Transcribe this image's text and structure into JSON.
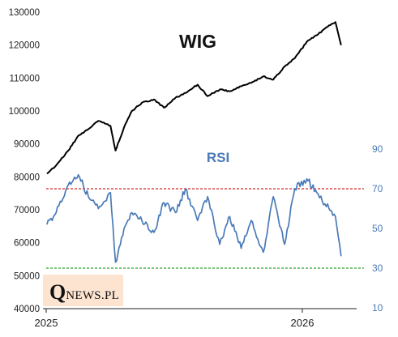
{
  "chart_data": {
    "type": "line",
    "title": "WIG",
    "subtitle": "RSI",
    "x_range": [
      "2025-01",
      "2026-02"
    ],
    "x_tick_labels": [
      "2025",
      "2026"
    ],
    "y_left": {
      "min": 40000,
      "max": 130000,
      "ticks": [
        "40000",
        "50000",
        "60000",
        "70000",
        "80000",
        "90000",
        "100000",
        "110000",
        "120000",
        "130000"
      ]
    },
    "y_right": {
      "min": 10,
      "max": 90,
      "ticks": [
        "10",
        "30",
        "50",
        "70",
        "90"
      ]
    },
    "reference_lines": [
      {
        "axis": "right",
        "value": 70,
        "color": "#d62728",
        "style": "dashed"
      },
      {
        "axis": "right",
        "value": 30,
        "color": "#2ca02c",
        "style": "dashed"
      }
    ],
    "series": [
      {
        "name": "WIG",
        "axis": "left",
        "color": "#000000",
        "x": [
          "2025-01-02",
          "2025-01-15",
          "2025-02-01",
          "2025-02-15",
          "2025-03-01",
          "2025-03-15",
          "2025-04-01",
          "2025-04-08",
          "2025-04-20",
          "2025-05-01",
          "2025-05-15",
          "2025-06-01",
          "2025-06-15",
          "2025-07-01",
          "2025-07-15",
          "2025-08-01",
          "2025-08-15",
          "2025-09-01",
          "2025-09-15",
          "2025-10-01",
          "2025-10-15",
          "2025-11-01",
          "2025-11-15",
          "2025-12-01",
          "2025-12-15",
          "2026-01-01",
          "2026-01-15",
          "2026-02-01",
          "2026-02-10",
          "2026-02-18"
        ],
        "values": [
          81000,
          83500,
          88000,
          92500,
          94500,
          97000,
          95500,
          88000,
          95000,
          100000,
          102500,
          103500,
          101000,
          104000,
          105500,
          108000,
          104500,
          106500,
          106000,
          107500,
          108500,
          110500,
          109500,
          113500,
          116000,
          121000,
          123000,
          126000,
          127000,
          120000
        ]
      },
      {
        "name": "RSI",
        "axis": "right",
        "color": "#4a7ab7",
        "x": [
          "2025-01-02",
          "2025-01-15",
          "2025-02-01",
          "2025-02-15",
          "2025-03-01",
          "2025-03-15",
          "2025-04-01",
          "2025-04-08",
          "2025-04-20",
          "2025-05-01",
          "2025-05-15",
          "2025-06-01",
          "2025-06-15",
          "2025-07-01",
          "2025-07-15",
          "2025-08-01",
          "2025-08-15",
          "2025-09-01",
          "2025-09-15",
          "2025-10-01",
          "2025-10-15",
          "2025-11-01",
          "2025-11-15",
          "2025-12-01",
          "2025-12-15",
          "2026-01-01",
          "2026-01-15",
          "2026-02-01",
          "2026-02-10",
          "2026-02-18"
        ],
        "values": [
          52,
          58,
          72,
          77,
          66,
          60,
          68,
          33,
          50,
          58,
          54,
          48,
          63,
          58,
          70,
          54,
          66,
          42,
          56,
          40,
          54,
          38,
          66,
          42,
          70,
          75,
          68,
          60,
          56,
          36
        ]
      }
    ],
    "legend": "none",
    "grid": false
  },
  "logo": {
    "initial": "Q",
    "rest": "NEWS.PL"
  }
}
